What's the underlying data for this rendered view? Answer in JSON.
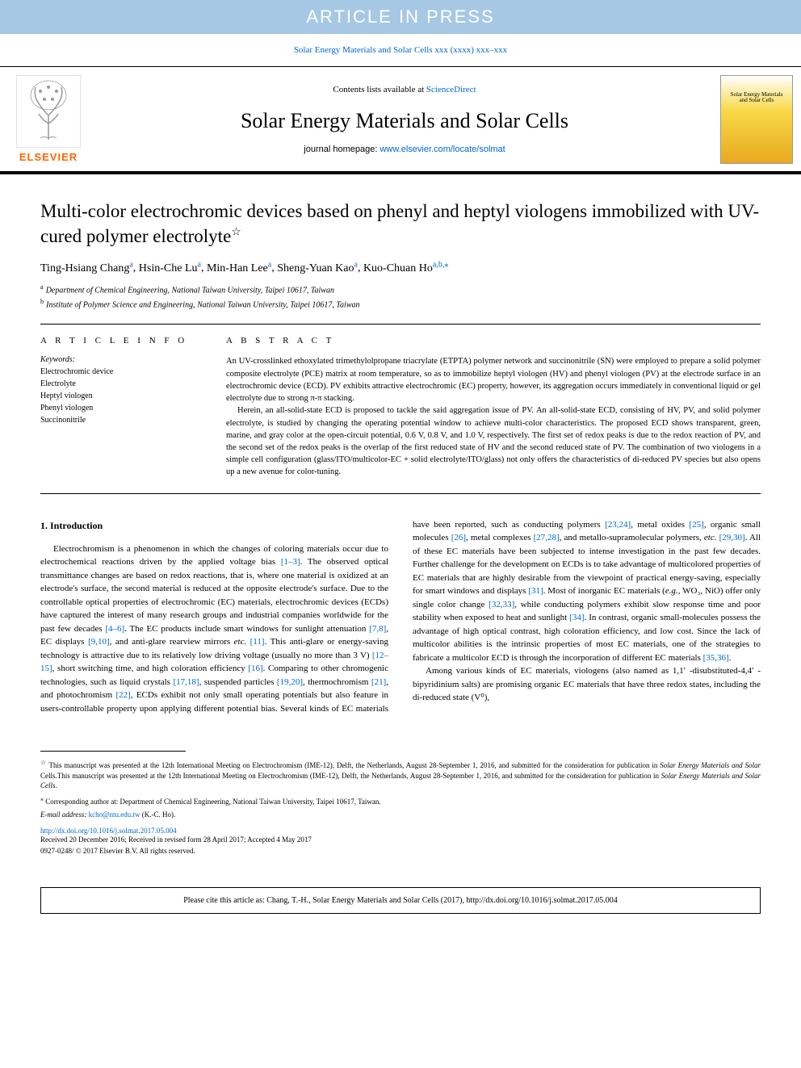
{
  "banner": "ARTICLE IN PRESS",
  "journal_ref": {
    "text": "Solar Energy Materials and Solar Cells xxx (xxxx) xxx–xxx"
  },
  "header": {
    "contents_prefix": "Contents lists available at ",
    "contents_link": "ScienceDirect",
    "journal_name": "Solar Energy Materials and Solar Cells",
    "homepage_prefix": "journal homepage: ",
    "homepage_link": "www.elsevier.com/locate/solmat",
    "elsevier": "ELSEVIER",
    "cover_title": "Solar Energy Materials and Solar Cells"
  },
  "article": {
    "title": "Multi-color electrochromic devices based on phenyl and heptyl viologens immobilized with UV-cured polymer electrolyte",
    "star": "☆",
    "authors": [
      {
        "name": "Ting-Hsiang Chang",
        "sup": "a"
      },
      {
        "name": "Hsin-Che Lu",
        "sup": "a"
      },
      {
        "name": "Min-Han Lee",
        "sup": "a"
      },
      {
        "name": "Sheng-Yuan Kao",
        "sup": "a"
      },
      {
        "name": "Kuo-Chuan Ho",
        "sup": "a,b,⁎"
      }
    ],
    "affiliations": [
      {
        "sup": "a",
        "text": "Department of Chemical Engineering, National Taiwan University, Taipei 10617, Taiwan"
      },
      {
        "sup": "b",
        "text": "Institute of Polymer Science and Engineering, National Taiwan University, Taipei 10617, Taiwan"
      }
    ]
  },
  "info": {
    "header": "A R T I C L E   I N F O",
    "keywords_label": "Keywords:",
    "keywords": [
      "Electrochromic device",
      "Electrolyte",
      "Heptyl viologen",
      "Phenyl viologen",
      "Succinonitrile"
    ]
  },
  "abstract": {
    "header": "A B S T R A C T",
    "p1": "An UV-crosslinked ethoxylated trimethylolpropane triacrylate (ETPTA) polymer network and succinonitrile (SN) were employed to prepare a solid polymer composite electrolyte (PCE) matrix at room temperature, so as to immobilize heptyl viologen (HV) and phenyl viologen (PV) at the electrode surface in an electrochromic device (ECD). PV exhibits attractive electrochromic (EC) property, however, its aggregation occurs immediately in conventional liquid or gel electrolyte due to strong π-π stacking.",
    "p2": "Herein, an all-solid-state ECD is proposed to tackle the said aggregation issue of PV. An all-solid-state ECD, consisting of HV, PV, and solid polymer electrolyte, is studied by changing the operating potential window to achieve multi-color characteristics. The proposed ECD shows transparent, green, marine, and gray color at the open-circuit potential, 0.6 V, 0.8 V, and 1.0 V, respectively. The first set of redox peaks is due to the redox reaction of PV, and the second set of the redox peaks is the overlap of the first reduced state of HV and the second reduced state of PV. The combination of two viologens in a simple cell configuration (glass/ITO/multicolor-EC + solid electrolyte/ITO/glass) not only offers the characteristics of di-reduced PV species but also opens up a new avenue for color-tuning."
  },
  "intro": {
    "title": "1. Introduction",
    "p1_a": "Electrochromism is a phenomenon in which the changes of coloring materials occur due to electrochemical reactions driven by the applied voltage bias ",
    "r1": "[1–3]",
    "p1_b": ". The observed optical transmittance changes are based on redox reactions, that is, where one material is oxidized at an electrode's surface, the second material is reduced at the opposite electrode's surface. Due to the controllable optical properties of electrochromic (EC) materials, electrochromic devices (ECDs) have captured the interest of many research groups and industrial companies worldwide for the past few decades ",
    "r2": "[4–6]",
    "p1_c": ". The EC products include smart windows for sunlight attenuation ",
    "r3": "[7,8]",
    "p1_d": ", EC displays ",
    "r4": "[9,10]",
    "p1_e": ", and anti-glare rearview mirrors ",
    "r4b": "etc.",
    "p1_e2": " ",
    "r5": "[11]",
    "p1_f": ". This anti-glare or energy-saving technology is attractive due to its relatively low driving voltage (usually no more than 3 V) ",
    "r6": "[12–15]",
    "p1_g": ", short switching time, and high coloration efficiency ",
    "r7": "[16]",
    "p1_h": ". Comparing to other chromogenic technologies, such as liquid crystals ",
    "r8": "[17,18]",
    "p1_i": ", suspended particles ",
    "r9": "[19,20]",
    "p1_j": ", thermochromism ",
    "r10": "[21]",
    "p1_k": ", and photochromism ",
    "r11": "[22]",
    "p1_l": ", ECDs exhibit not only small operating potentials but also feature in users-controllable property upon applying ",
    "p2_a": "different potential bias. Several kinds of EC materials have been reported, such as conducting polymers ",
    "r12": "[23,24]",
    "p2_b": ", metal oxides ",
    "r13": "[25]",
    "p2_c": ", organic small molecules ",
    "r14": "[26]",
    "p2_d": ", metal complexes ",
    "r15": "[27,28]",
    "p2_e": ", and metallo-supramolecular polymers, ",
    "r15b": "etc.",
    "p2_e2": " ",
    "r16": "[29,30]",
    "p2_f": ". All of these EC materials have been subjected to intense investigation in the past few decades. Further challenge for the development on ECDs is to take advantage of multicolored properties of EC materials that are highly desirable from the viewpoint of practical energy-saving, especially for smart windows and displays ",
    "r17": "[31]",
    "p2_g": ". Most of inorganic EC materials (",
    "r17b": "e.g.",
    "p2_g2": ", WO₃, NiO) offer only single color change ",
    "r18": "[32,33]",
    "p2_h": ", while conducting polymers exhibit slow response time and poor stability when exposed to heat and sunlight ",
    "r19": "[34]",
    "p2_i": ". In contrast, organic small-molecules possess the advantage of high optical contrast, high coloration efficiency, and low cost. Since the lack of multicolor abilities is the intrinsic properties of most EC materials, one of the strategies to fabricate a multicolor ECD is through the incorporation of different EC materials ",
    "r20": "[35,36]",
    "p2_j": ".",
    "p3_a": "Among various kinds of EC materials, viologens (also named as 1,1′ -disubstituted-4,4′ -bipyridinium salts) are promising organic EC materials that have three redox states, including the di-reduced state (V⁰),"
  },
  "footer": {
    "fn1_marker": "☆",
    "fn1_a": " This manuscript was presented at the 12th International Meeting on Electrochromism (IME-12), Delft, the Netherlands, August 28-September 1, 2016, and submitted for the consideration for publication in ",
    "fn1_i": "Solar Energy Materials and Solar",
    "fn1_b": " Cells.This manuscript was presented at the 12th International Meeting on Electrochromism (IME-12), Delft, the Netherlands, August 28-September 1, 2016, and submitted for the consideration for publication in ",
    "fn1_i2": "Solar Energy Materials and Solar Cells",
    "fn1_c": ".",
    "fn2_marker": "⁎",
    "fn2": " Corresponding author at: Department of Chemical Engineering, National Taiwan University, Taipei 10617, Taiwan.",
    "email_label": "E-mail address: ",
    "email": "kcho@ntu.edu.tw",
    "email_suffix": " (K.-C. Ho).",
    "doi": "http://dx.doi.org/10.1016/j.solmat.2017.05.004",
    "received": "Received 20 December 2016; Received in revised form 28 April 2017; Accepted 4 May 2017",
    "copyright": "0927-0248/ © 2017 Elsevier B.V. All rights reserved.",
    "cite": "Please cite this article as: Chang, T.-H., Solar Energy Materials and Solar Cells (2017), http://dx.doi.org/10.1016/j.solmat.2017.05.004"
  },
  "colors": {
    "banner_bg": "#a6c8e4",
    "link": "#0066cc",
    "elsevier": "#ff6600"
  }
}
